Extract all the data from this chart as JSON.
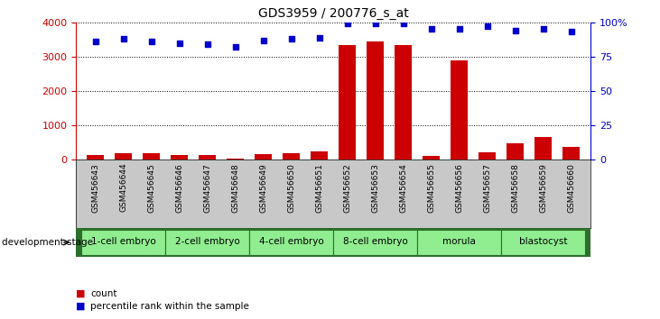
{
  "title": "GDS3959 / 200776_s_at",
  "samples": [
    "GSM456643",
    "GSM456644",
    "GSM456645",
    "GSM456646",
    "GSM456647",
    "GSM456648",
    "GSM456649",
    "GSM456650",
    "GSM456651",
    "GSM456652",
    "GSM456653",
    "GSM456654",
    "GSM456655",
    "GSM456656",
    "GSM456657",
    "GSM456658",
    "GSM456659",
    "GSM456660"
  ],
  "counts": [
    120,
    175,
    175,
    130,
    140,
    30,
    150,
    175,
    230,
    3330,
    3430,
    3330,
    100,
    2900,
    200,
    470,
    670,
    380
  ],
  "percentile_ranks": [
    86,
    88,
    86,
    85,
    84,
    82,
    87,
    88,
    89,
    99,
    99,
    99,
    95,
    95,
    97,
    94,
    95,
    93
  ],
  "stages": [
    {
      "label": "1-cell embryo",
      "start": 0,
      "end": 3
    },
    {
      "label": "2-cell embryo",
      "start": 3,
      "end": 6
    },
    {
      "label": "4-cell embryo",
      "start": 6,
      "end": 9
    },
    {
      "label": "8-cell embryo",
      "start": 9,
      "end": 12
    },
    {
      "label": "morula",
      "start": 12,
      "end": 15
    },
    {
      "label": "blastocyst",
      "start": 15,
      "end": 18
    }
  ],
  "ylim_left": [
    0,
    4000
  ],
  "ylim_right": [
    0,
    100
  ],
  "yticks_left": [
    0,
    1000,
    2000,
    3000,
    4000
  ],
  "yticks_right": [
    0,
    25,
    50,
    75,
    100
  ],
  "bar_color": "#cc0000",
  "dot_color": "#0000cc",
  "grid_color": "#000000",
  "bg_color": "#ffffff",
  "sample_area_color": "#c8c8c8",
  "stage_area_color": "#90ee90",
  "stage_border_color": "#2d6e2d",
  "legend_count_color": "#cc0000",
  "legend_pct_color": "#0000cc"
}
